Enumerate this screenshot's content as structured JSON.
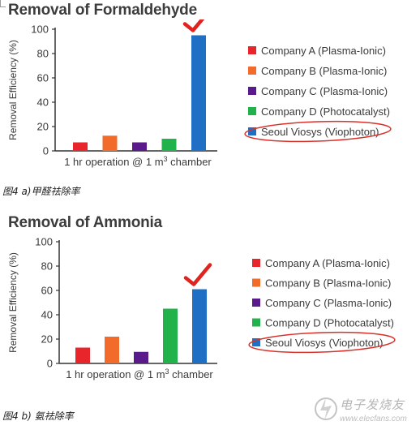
{
  "chart_data": [
    {
      "type": "bar",
      "title": "Removal of Formaldehyde",
      "ylabel": "Removal Efficiency (%)",
      "xlabel_prefix": "1 hr operation @ 1 m",
      "xlabel_sup": "3",
      "xlabel_suffix": " chamber",
      "ylim": [
        0,
        100
      ],
      "yticks": [
        0,
        20,
        40,
        60,
        80,
        100
      ],
      "legend_position": "right",
      "categories": [
        "Company A (Plasma-Ionic)",
        "Company B (Plasma-Ionic)",
        "Company C (Plasma-Ionic)",
        "Company D (Photocatalyst)",
        "Seoul Viosys (Viophoton)"
      ],
      "values": [
        7,
        12.5,
        7,
        10,
        95
      ],
      "colors": [
        "#e8252b",
        "#f26b2a",
        "#5b1a8b",
        "#22b24c",
        "#1f6fc4"
      ],
      "highlight": "Seoul Viosys (Viophoton)"
    },
    {
      "type": "bar",
      "title": "Removal of Ammonia",
      "ylabel": "Removal Efficiency (%)",
      "xlabel_prefix": "1 hr operation @ 1 m",
      "xlabel_sup": "3",
      "xlabel_suffix": " chamber",
      "ylim": [
        0,
        100
      ],
      "yticks": [
        0,
        20,
        40,
        60,
        80,
        100
      ],
      "legend_position": "right",
      "categories": [
        "Company A (Plasma-Ionic)",
        "Company B (Plasma-Ionic)",
        "Company C (Plasma-Ionic)",
        "Company D (Photocatalyst)",
        "Seoul Viosys (Viophoton)"
      ],
      "values": [
        13,
        22,
        9.5,
        45,
        61
      ],
      "colors": [
        "#e8252b",
        "#f26b2a",
        "#5b1a8b",
        "#22b24c",
        "#1f6fc4"
      ],
      "highlight": "Seoul Viosys (Viophoton)"
    }
  ],
  "captions": {
    "a": "图4 a)甲醛祛除率",
    "b": "图4 b) 氨祛除率"
  },
  "watermark": {
    "text": "电子发烧友",
    "url": "www.elecfans.com"
  },
  "colors": {
    "axis": "#333333",
    "text": "#3a3a3a",
    "checkmark": "#e0231f",
    "highlight_ellipse": "#d9322c"
  }
}
